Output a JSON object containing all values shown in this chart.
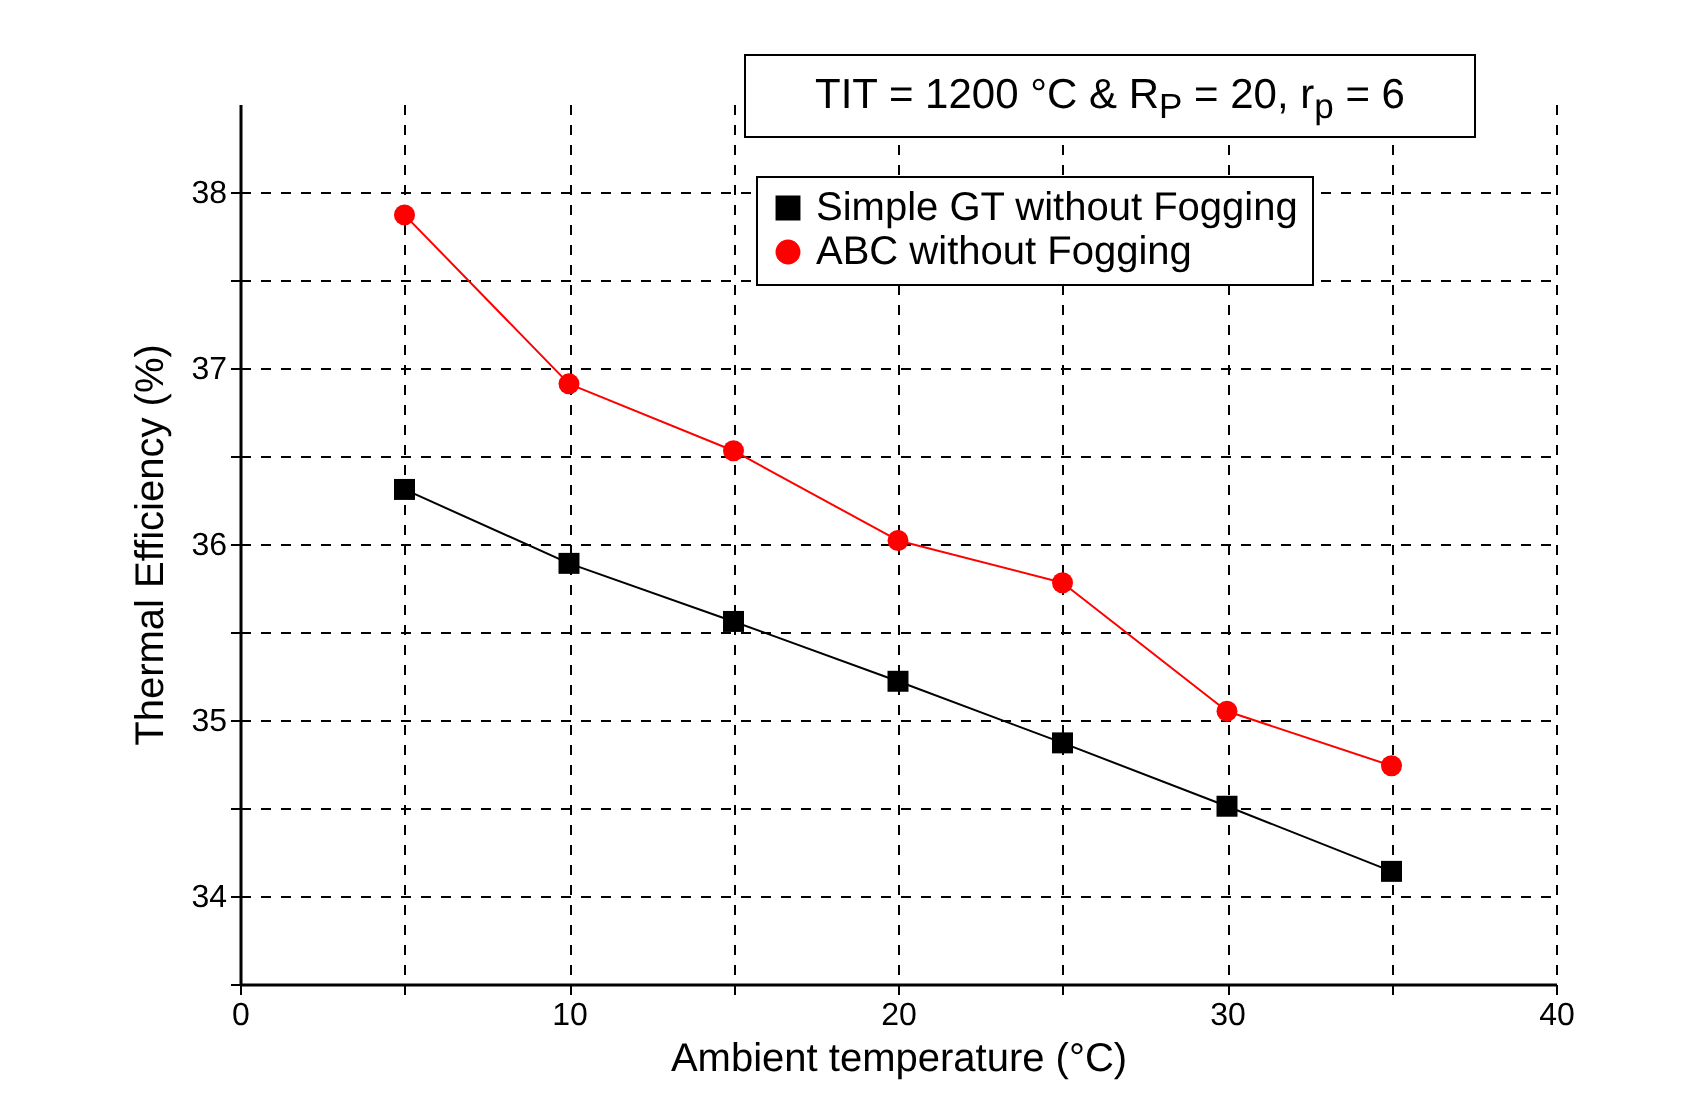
{
  "chart_data": {
    "type": "line",
    "xlabel": "Ambient temperature (°C)",
    "ylabel": "Thermal Efficiency (%)",
    "annotations": [
      "TIT = 1200 °C & R$_{P}$ = 20, r$_{p}$ = 6"
    ],
    "x": [
      5,
      10,
      15,
      20,
      25,
      30,
      35
    ],
    "series": [
      {
        "name": "Simple GT without Fogging",
        "color": "#000000",
        "marker": "square",
        "values": [
          36.31,
          35.89,
          35.56,
          35.22,
          34.87,
          34.51,
          34.14
        ]
      },
      {
        "name": "ABC without Fogging",
        "color": "#ff0000",
        "marker": "circle",
        "values": [
          37.87,
          36.91,
          36.53,
          36.02,
          35.78,
          35.05,
          34.74
        ]
      }
    ],
    "xlim": [
      0,
      40
    ],
    "xticks": [
      0,
      {
        "value": 5,
        "label": null
      },
      10,
      {
        "value": 15,
        "label": null
      },
      20,
      {
        "value": 25,
        "label": null
      },
      30,
      {
        "value": 35,
        "label": null
      },
      40
    ],
    "ylim": [
      33.5,
      38.5
    ],
    "yticks": [
      {
        "value": 33.5,
        "label": null
      },
      34,
      {
        "value": 34.5,
        "label": null
      },
      35,
      {
        "value": 35.5,
        "label": null
      },
      36,
      {
        "value": 36.5,
        "label": null
      },
      37,
      {
        "value": 37.5,
        "label": null
      },
      38
    ],
    "grid": true,
    "legend": "top right",
    "line_style": "solid"
  }
}
